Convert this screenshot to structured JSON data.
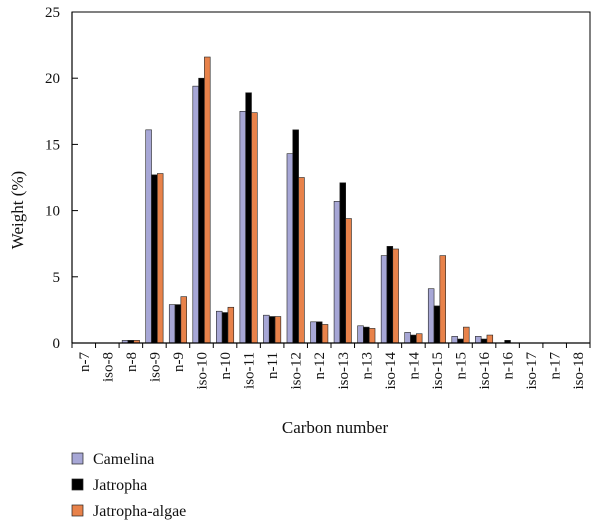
{
  "chart_data": {
    "type": "bar",
    "title": "",
    "xlabel": "Carbon number",
    "ylabel": "Weight (%)",
    "ylim": [
      0,
      25
    ],
    "yticks": [
      0,
      5,
      10,
      15,
      20,
      25
    ],
    "grid": false,
    "legend_position": "bottom-left",
    "categories": [
      "n-7",
      "iso-8",
      "n-8",
      "iso-9",
      "n-9",
      "iso-10",
      "n-10",
      "iso-11",
      "n-11",
      "iso-12",
      "n-12",
      "iso-13",
      "n-13",
      "iso-14",
      "n-14",
      "iso-15",
      "n-15",
      "iso-16",
      "n-16",
      "iso-17",
      "n-17",
      "iso-18"
    ],
    "series": [
      {
        "name": "Camelina",
        "color": "#a7a7d6",
        "values": [
          0,
          0,
          0.2,
          16.1,
          2.9,
          19.4,
          2.4,
          17.5,
          2.1,
          14.3,
          1.6,
          10.7,
          1.3,
          6.6,
          0.8,
          4.1,
          0.5,
          0.5,
          0,
          0,
          0,
          0
        ]
      },
      {
        "name": "Jatropha",
        "color": "#000000",
        "values": [
          0,
          0,
          0.2,
          12.7,
          2.9,
          20.0,
          2.3,
          18.9,
          2.0,
          16.1,
          1.6,
          12.1,
          1.2,
          7.3,
          0.6,
          2.8,
          0.3,
          0.3,
          0.2,
          0,
          0,
          0
        ]
      },
      {
        "name": "Jatropha-algae",
        "color": "#e8824a",
        "values": [
          0,
          0,
          0.2,
          12.8,
          3.5,
          21.6,
          2.7,
          17.4,
          2.0,
          12.5,
          1.4,
          9.4,
          1.1,
          7.1,
          0.7,
          6.6,
          1.2,
          0.6,
          0,
          0,
          0,
          0
        ]
      }
    ]
  }
}
